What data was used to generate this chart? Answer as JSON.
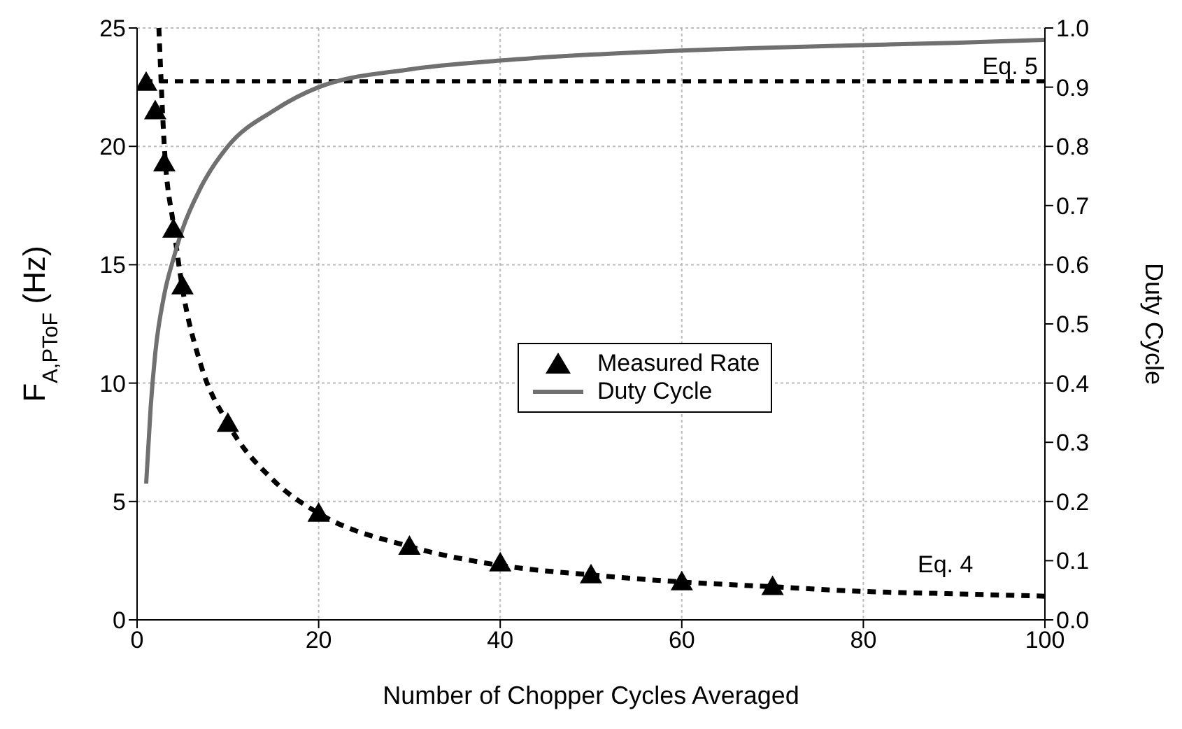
{
  "chart_data": {
    "type": "line",
    "xlabel": "Number of Chopper Cycles Averaged",
    "ylabel": "F$_{A,PToF}$ (Hz)",
    "y2label": "Duty Cycle",
    "xlim": [
      0,
      100
    ],
    "xticks": [
      0,
      20,
      40,
      60,
      80,
      100
    ],
    "ylim": [
      0,
      25
    ],
    "yticks": [
      0,
      5,
      10,
      15,
      20,
      25
    ],
    "y2lim": [
      0,
      1
    ],
    "y2ticks": [
      {
        "value": 0,
        "label": "0.0"
      },
      0.1,
      0.2,
      0.3,
      0.4,
      0.5,
      0.6,
      0.7,
      0.8,
      0.9,
      {
        "value": 1,
        "label": "1.0"
      }
    ],
    "grid": true,
    "legend": "right",
    "series": [
      {
        "color": "#000000",
        "line_style": "dashed",
        "marker": "none",
        "x": [
          2.4,
          3,
          4,
          5,
          7,
          10,
          15,
          20,
          30,
          40,
          50,
          60,
          70,
          80,
          90,
          100
        ],
        "values": [
          25,
          20,
          16.7,
          14,
          10.8,
          8.3,
          5.9,
          4.5,
          3.1,
          2.3,
          1.9,
          1.6,
          1.4,
          1.2,
          1.1,
          1.0
        ]
      },
      {
        "type": "scatter",
        "name": "Measured Rate",
        "color": "#000000",
        "marker": "triangle",
        "x": [
          1,
          2,
          3,
          4,
          5,
          10,
          20,
          30,
          40,
          50,
          60,
          70
        ],
        "values": [
          22.7,
          21.5,
          19.3,
          16.5,
          14.1,
          8.3,
          4.5,
          3.1,
          2.4,
          1.9,
          1.6,
          1.4
        ]
      },
      {
        "name": "Duty Cycle",
        "color": "#707070",
        "line_style": "solid",
        "marker": "none",
        "axis": "y2",
        "x": [
          1,
          1.5,
          2,
          3,
          4,
          5,
          7,
          10,
          15,
          20,
          30,
          40,
          50,
          60,
          70,
          80,
          90,
          100
        ],
        "values": [
          0.23,
          0.36,
          0.45,
          0.55,
          0.61,
          0.66,
          0.73,
          0.8,
          0.86,
          0.9,
          0.93,
          0.945,
          0.955,
          0.962,
          0.967,
          0.971,
          0.975,
          0.98
        ]
      }
    ],
    "ref_lines": [
      {
        "axis": "y2",
        "value": 0.91,
        "label": "Eq. 5",
        "color": "#000000",
        "line_style": "dashed"
      }
    ],
    "annotations": [
      "Eq. 4"
    ]
  }
}
